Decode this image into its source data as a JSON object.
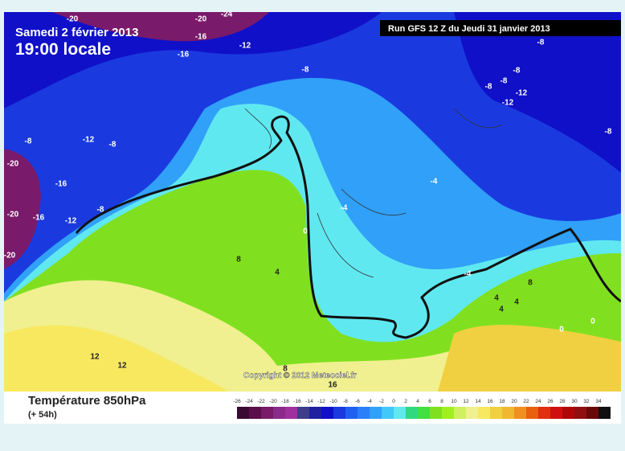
{
  "header": {
    "date": "Samedi 2 février 2013",
    "time": "19:00 locale",
    "run": "Run GFS 12 Z du Jeudi 31 janvier 2013"
  },
  "copyright": "Copyright © 2012 Meteociel.fr",
  "legend": {
    "title": "Température 850hPa",
    "subtitle": "(+ 54h)",
    "labels": [
      -26,
      -24,
      -22,
      -20,
      -18,
      -16,
      -14,
      -12,
      -10,
      -8,
      -6,
      -4,
      -2,
      0,
      2,
      4,
      6,
      8,
      10,
      12,
      14,
      16,
      18,
      20,
      22,
      24,
      26,
      28,
      30,
      32,
      34
    ],
    "colors": [
      "#3a0a30",
      "#5a0f4a",
      "#7a1a6a",
      "#8a2a8a",
      "#a030a0",
      "#3d3d8a",
      "#2020a0",
      "#1010c8",
      "#1a3ae0",
      "#2060f0",
      "#2a80f8",
      "#30a0f8",
      "#40c8f8",
      "#60e8f0",
      "#30d880",
      "#40e040",
      "#80e020",
      "#a0f020",
      "#d0f060",
      "#f0f090",
      "#f8e860",
      "#f0d040",
      "#f0b830",
      "#f09020",
      "#e86010",
      "#e03010",
      "#d01010",
      "#b00808",
      "#901010",
      "#6a0808",
      "#101010"
    ]
  },
  "contour_labels": [
    -20,
    -20,
    -24,
    -16,
    -12,
    -16,
    -8,
    -8,
    -12,
    -8,
    -20,
    -16,
    -20,
    -16,
    -12,
    -8,
    -20,
    -8,
    -8,
    -8,
    -8,
    -12,
    -12,
    -8,
    -4,
    -4,
    0,
    8,
    4,
    -4,
    8,
    4,
    4,
    4,
    0,
    0,
    12,
    12,
    8,
    16
  ]
}
